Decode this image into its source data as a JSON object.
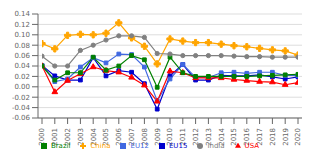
{
  "chart_data": {
    "type": "line",
    "x": [
      2000,
      2001,
      2002,
      2003,
      2004,
      2005,
      2006,
      2007,
      2008,
      2009,
      2010,
      2011,
      2012,
      2013,
      2014,
      2015,
      2016,
      2017,
      2018,
      2019,
      2020
    ],
    "xlim": [
      2000,
      2020
    ],
    "xticks": [
      2000,
      2001,
      2002,
      2003,
      2004,
      2005,
      2006,
      2007,
      2008,
      2009,
      2010,
      2011,
      2012,
      2013,
      2014,
      2015,
      2016,
      2017,
      2018,
      2019,
      2020
    ],
    "series": [
      {
        "name": "EU15",
        "color": "#0000cd",
        "marker": "square",
        "values": [
          0.041,
          0.021,
          0.013,
          0.013,
          0.056,
          0.021,
          0.031,
          0.028,
          0.006,
          -0.043,
          0.021,
          0.043,
          0.013,
          0.013,
          0.022,
          0.021,
          0.021,
          0.023,
          0.019,
          0.015,
          0.019
        ]
      },
      {
        "name": "EU12",
        "color": "#4169e1",
        "marker": "square",
        "values": [
          0.041,
          0.01,
          0.015,
          0.038,
          0.056,
          0.046,
          0.063,
          0.062,
          0.038,
          -0.027,
          0.015,
          0.043,
          0.018,
          0.018,
          0.027,
          0.028,
          0.026,
          0.028,
          0.028,
          0.022,
          0.022
        ]
      },
      {
        "name": "USA",
        "color": "#ff0000",
        "marker": "triangle",
        "values": [
          0.04,
          -0.01,
          0.012,
          0.025,
          0.038,
          0.031,
          0.028,
          0.018,
          0.003,
          -0.028,
          0.03,
          0.027,
          0.017,
          0.017,
          0.017,
          0.014,
          0.012,
          0.01,
          0.009,
          0.004,
          0.008
        ]
      },
      {
        "name": "Brazil",
        "color": "#008000",
        "marker": "square",
        "values": [
          0.04,
          0.013,
          0.027,
          0.027,
          0.057,
          0.032,
          0.04,
          0.06,
          0.052,
          -0.001,
          0.057,
          0.027,
          0.02,
          0.02,
          0.02,
          0.02,
          0.02,
          0.021,
          0.022,
          0.023,
          0.024
        ]
      },
      {
        "name": "China",
        "color": "#ffa500",
        "marker": "cross",
        "values": [
          0.083,
          0.073,
          0.099,
          0.101,
          0.1,
          0.103,
          0.123,
          0.094,
          0.078,
          0.044,
          0.092,
          0.088,
          0.085,
          0.085,
          0.082,
          0.079,
          0.077,
          0.074,
          0.071,
          0.069,
          0.061
        ]
      },
      {
        "name": "India",
        "color": "#808080",
        "marker": "circle",
        "values": [
          0.059,
          0.04,
          0.04,
          0.07,
          0.08,
          0.09,
          0.098,
          0.098,
          0.095,
          0.064,
          0.063,
          0.06,
          0.06,
          0.06,
          0.06,
          0.059,
          0.058,
          0.058,
          0.057,
          0.057,
          0.057
        ]
      }
    ],
    "ylim": [
      -0.06,
      0.14
    ],
    "yticks": [
      -0.06,
      -0.04,
      -0.02,
      {
        "value": 0,
        "label": "0.00"
      },
      0.02,
      0.04,
      0.06,
      0.08,
      {
        "value": 0.1,
        "label": "0.10"
      },
      0.12,
      0.14
    ],
    "grid": "y",
    "legend": "bottom"
  }
}
